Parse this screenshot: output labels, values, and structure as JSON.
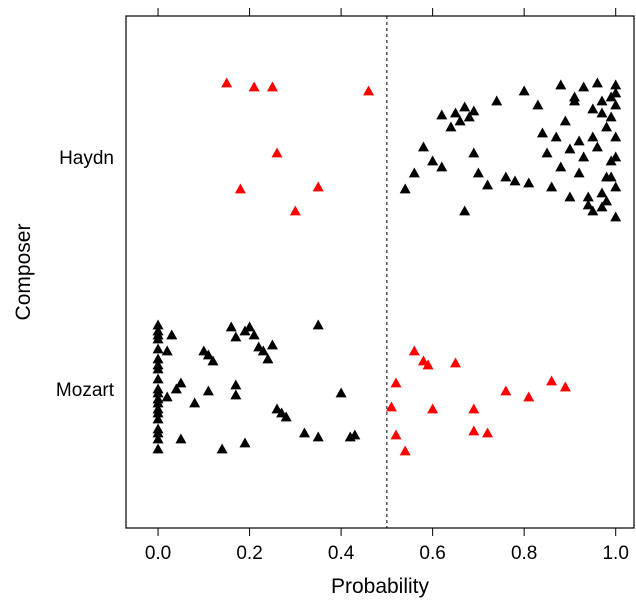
{
  "chart_data": {
    "type": "scatter",
    "title": "",
    "xlabel": "Probability",
    "ylabel": "Composer",
    "xlim": [
      -0.07,
      1.04
    ],
    "xticks": [
      0.0,
      0.2,
      0.4,
      0.6,
      0.8,
      1.0
    ],
    "xtick_labels": [
      "0.0",
      "0.2",
      "0.4",
      "0.6",
      "0.8",
      "1.0"
    ],
    "categories": [
      "Haydn",
      "Mozart"
    ],
    "threshold": 0.5,
    "grid": false,
    "marker": "triangle",
    "colors": {
      "correct": "#000000",
      "misclassified": "#ff0000"
    },
    "series": [
      {
        "category": "Haydn",
        "color": "#ff0000",
        "x": [
          0.15,
          0.21,
          0.25,
          0.46,
          0.26,
          0.18,
          0.35,
          0.3
        ],
        "jitter": [
          0.37,
          0.35,
          0.35,
          0.33,
          0.02,
          -0.16,
          -0.15,
          -0.27
        ]
      },
      {
        "category": "Haydn",
        "color": "#000000",
        "x": [
          0.54,
          0.56,
          0.58,
          0.6,
          0.62,
          0.64,
          0.65,
          0.66,
          0.67,
          0.68,
          0.69,
          0.7,
          0.72,
          0.74,
          0.76,
          0.78,
          0.8,
          0.81,
          0.83,
          0.84,
          0.85,
          0.86,
          0.87,
          0.88,
          0.89,
          0.9,
          0.91,
          0.92,
          0.93,
          0.94,
          0.95,
          0.96,
          0.97,
          0.98,
          0.99,
          1.0,
          0.96,
          0.97,
          0.99,
          1.0,
          0.95,
          0.98,
          0.99,
          1.0,
          0.92,
          0.94,
          0.97,
          1.0,
          0.91,
          0.95,
          0.98,
          1.0,
          0.93,
          0.97,
          1.0,
          0.9,
          0.99,
          1.0,
          0.67,
          0.69,
          0.62,
          0.88
        ],
        "jitter": [
          -0.16,
          -0.08,
          0.05,
          -0.02,
          0.21,
          0.15,
          0.22,
          0.18,
          0.25,
          0.2,
          0.02,
          -0.08,
          -0.14,
          0.28,
          -0.1,
          -0.12,
          0.33,
          -0.13,
          0.26,
          0.12,
          0.02,
          -0.15,
          0.1,
          -0.05,
          0.18,
          -0.2,
          0.3,
          -0.08,
          0.35,
          -0.24,
          0.24,
          0.05,
          -0.18,
          0.15,
          -0.02,
          0.36,
          0.37,
          0.28,
          0.3,
          -0.3,
          0.1,
          -0.1,
          0.2,
          0.0,
          0.08,
          -0.2,
          0.22,
          0.32,
          0.28,
          -0.27,
          -0.22,
          -0.15,
          0.0,
          -0.25,
          0.26,
          0.04,
          -0.1,
          0.1,
          -0.27,
          0.23,
          -0.05,
          0.36
        ]
      },
      {
        "category": "Mozart",
        "color": "#ff0000",
        "x": [
          0.56,
          0.58,
          0.59,
          0.65,
          0.52,
          0.76,
          0.81,
          0.86,
          0.89,
          0.51,
          0.6,
          0.69,
          0.52,
          0.69,
          0.72,
          0.54
        ],
        "jitter": [
          0.19,
          0.14,
          0.12,
          0.13,
          0.03,
          -0.01,
          -0.04,
          0.04,
          0.01,
          -0.09,
          -0.1,
          -0.1,
          -0.23,
          -0.21,
          -0.22,
          -0.31
        ]
      },
      {
        "category": "Mozart",
        "color": "#000000",
        "x": [
          0.0,
          0.0,
          0.0,
          0.0,
          0.0,
          0.0,
          0.0,
          0.0,
          0.0,
          0.0,
          0.0,
          0.0,
          0.0,
          0.0,
          0.0,
          0.0,
          0.0,
          0.0,
          0.0,
          0.0,
          0.02,
          0.03,
          0.05,
          0.04,
          0.02,
          0.11,
          0.1,
          0.12,
          0.08,
          0.11,
          0.16,
          0.17,
          0.19,
          0.2,
          0.21,
          0.22,
          0.23,
          0.25,
          0.24,
          0.17,
          0.17,
          0.26,
          0.27,
          0.28,
          0.32,
          0.35,
          0.35,
          0.4,
          0.42,
          0.43,
          0.19,
          0.14,
          0.05
        ],
        "jitter": [
          0.32,
          0.29,
          0.25,
          0.2,
          0.15,
          0.1,
          0.05,
          0.0,
          -0.05,
          -0.1,
          -0.15,
          -0.2,
          -0.25,
          -0.3,
          0.27,
          0.12,
          -0.02,
          -0.12,
          -0.22,
          -0.07,
          0.19,
          0.27,
          0.03,
          0.0,
          -0.04,
          0.17,
          0.19,
          0.14,
          -0.07,
          -0.01,
          0.31,
          0.26,
          0.29,
          0.31,
          0.27,
          0.21,
          0.19,
          0.22,
          0.15,
          0.02,
          -0.03,
          -0.1,
          -0.12,
          -0.14,
          -0.22,
          -0.24,
          0.32,
          -0.02,
          -0.24,
          -0.23,
          -0.27,
          -0.3,
          -0.25
        ]
      }
    ]
  }
}
